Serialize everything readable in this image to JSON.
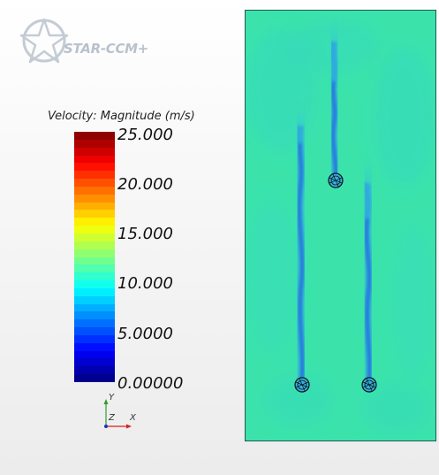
{
  "app": {
    "logo_text": "STAR-CCM+"
  },
  "legend": {
    "title": "Velocity: Magnitude (m/s)",
    "min": 0,
    "max": 25,
    "tick_labels": [
      "25.000",
      "20.000",
      "15.000",
      "10.000",
      "5.0000",
      "0.00000"
    ],
    "colormap": "blue-red (jet)",
    "band_count": 32
  },
  "triad": {
    "x_label": "X",
    "y_label": "Y",
    "z_label": "Z"
  },
  "scene": {
    "background_color": "#3be3ab",
    "wake_color": "#2a7fe0",
    "cylinders": [
      {
        "name": "cylinder-top",
        "icon": "cylinder-icon"
      },
      {
        "name": "cylinder-bottom-left",
        "icon": "cylinder-icon"
      },
      {
        "name": "cylinder-bottom-right",
        "icon": "cylinder-icon"
      }
    ]
  }
}
